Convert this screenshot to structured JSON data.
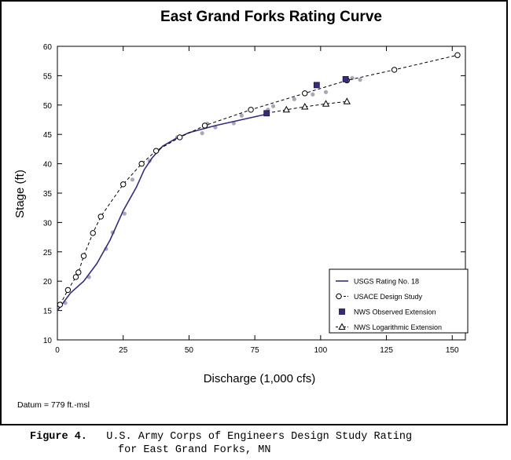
{
  "chart_data": {
    "type": "line",
    "title": "East Grand Forks Rating Curve",
    "xlabel": "Discharge (1,000 cfs)",
    "ylabel": "Stage (ft)",
    "xlim": [
      0,
      155
    ],
    "ylim": [
      10,
      60
    ],
    "xticks": [
      0,
      25,
      50,
      75,
      100,
      125,
      150
    ],
    "yticks": [
      10,
      15,
      20,
      25,
      30,
      35,
      40,
      45,
      50,
      55,
      60
    ],
    "grid": false,
    "legend_position": "bottom-right",
    "series": [
      {
        "name": "USGS Rating No. 18",
        "style": "solid-line",
        "color": "#3a2a7a",
        "x": [
          0,
          5,
          10,
          15,
          20,
          25,
          30,
          33,
          36,
          40,
          45,
          50,
          60,
          70,
          80
        ],
        "y": [
          15,
          18,
          20,
          23,
          27,
          32,
          36,
          39,
          41,
          43,
          44.3,
          45.3,
          46.5,
          47.5,
          48.5
        ]
      },
      {
        "name": "USACE Design Study",
        "style": "dashed-line-open-circle",
        "color": "#000000",
        "x": [
          1,
          4,
          7,
          8,
          10,
          13.5,
          16.5,
          25,
          32,
          37.5,
          46.5,
          56,
          73.5,
          94,
          110,
          128,
          152
        ],
        "y": [
          16,
          18.5,
          20.7,
          21.5,
          24.3,
          28.2,
          31,
          36.5,
          40,
          42.2,
          44.5,
          46.5,
          49.2,
          52,
          54.2,
          56,
          58.5
        ]
      },
      {
        "name": "NWS Observed Extension",
        "style": "filled-square",
        "color": "#3a2a7a",
        "x": [
          79.5,
          98.5,
          109.5
        ],
        "y": [
          48.6,
          53.4,
          54.4
        ]
      },
      {
        "name": "NWS Logarithmic Extension",
        "style": "dashed-line-open-triangle",
        "color": "#000000",
        "x": [
          79.5,
          87,
          94,
          102,
          110
        ],
        "y": [
          48.6,
          49.2,
          49.7,
          50.2,
          50.6
        ]
      }
    ],
    "decorative_points": {
      "color": "#a8a8b8",
      "x": [
        3,
        12,
        18.5,
        21,
        25.5,
        28.5,
        35,
        45.5,
        55,
        57,
        60,
        67,
        70,
        80,
        82,
        90,
        97,
        102,
        112,
        115
      ],
      "y": [
        16.3,
        20.7,
        25.5,
        28.3,
        31.5,
        37.3,
        40.5,
        44.5,
        45.2,
        46.8,
        46.2,
        46.9,
        48.2,
        49.2,
        49.8,
        51,
        51.8,
        52.2,
        54.6,
        54.3
      ]
    }
  },
  "datum_note": "Datum = 779 ft.-msl",
  "caption": {
    "label": "Figure 4.",
    "line1": "U.S. Army Corps of Engineers Design Study Rating",
    "line2": "for East Grand Forks, MN"
  }
}
